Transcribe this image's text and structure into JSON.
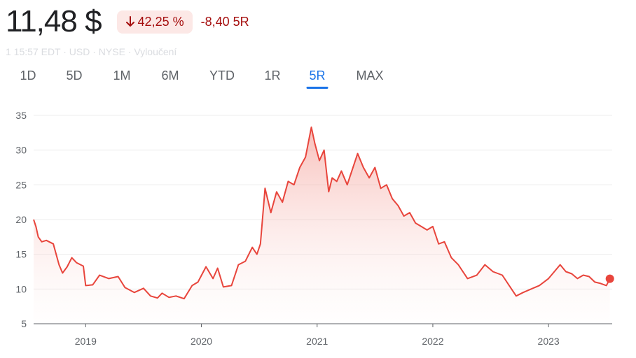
{
  "header": {
    "price": "11,48 $",
    "change_percent": "42,25 %",
    "change_direction": "down",
    "change_absolute": "-8,40 5R",
    "subline": "1  15:57 EDT · USD · NYSE · Vyloučení"
  },
  "range_tabs": [
    {
      "label": "1D",
      "active": false
    },
    {
      "label": "5D",
      "active": false
    },
    {
      "label": "1M",
      "active": false
    },
    {
      "label": "6M",
      "active": false
    },
    {
      "label": "YTD",
      "active": false
    },
    {
      "label": "1R",
      "active": false
    },
    {
      "label": "5R",
      "active": true
    },
    {
      "label": "MAX",
      "active": false
    }
  ],
  "colors": {
    "line": "#e8453c",
    "fill": "#f6c4c0",
    "negative_text": "#a50e0e",
    "negative_bg": "#fce8e6",
    "active_tab": "#1a73e8",
    "grid": "#ececec",
    "axis": "#5f6368"
  },
  "chart_data": {
    "type": "area",
    "title": "",
    "xlabel": "",
    "ylabel": "",
    "grid": true,
    "y_ticks": [
      5,
      10,
      15,
      20,
      25,
      30,
      35
    ],
    "y_tick_labels": [
      "5",
      "10",
      "15",
      "20",
      "25",
      "30",
      "35"
    ],
    "ylim": [
      5,
      35
    ],
    "xlim": [
      2018.55,
      2023.55
    ],
    "x_ticks": [
      2019,
      2020,
      2021,
      2022,
      2023
    ],
    "x_tick_labels": [
      "2019",
      "2020",
      "2021",
      "2022",
      "2023"
    ],
    "series": [
      {
        "x": [
          2018.55,
          2018.57,
          2018.59,
          2018.62,
          2018.66,
          2018.72,
          2018.77,
          2018.8,
          2018.84,
          2018.88,
          2018.92,
          2018.98,
          2019.0,
          2019.06,
          2019.12,
          2019.2,
          2019.28,
          2019.34,
          2019.42,
          2019.5,
          2019.56,
          2019.62,
          2019.66,
          2019.72,
          2019.78,
          2019.85,
          2019.92,
          2019.97,
          2020.04,
          2020.1,
          2020.14,
          2020.19,
          2020.26,
          2020.32,
          2020.38,
          2020.44,
          2020.48,
          2020.51,
          2020.55,
          2020.6,
          2020.65,
          2020.7,
          2020.75,
          2020.8,
          2020.85,
          2020.9,
          2020.95,
          2020.98,
          2021.02,
          2021.06,
          2021.1,
          2021.13,
          2021.17,
          2021.21,
          2021.26,
          2021.3,
          2021.35,
          2021.4,
          2021.45,
          2021.5,
          2021.55,
          2021.6,
          2021.65,
          2021.7,
          2021.75,
          2021.8,
          2021.85,
          2021.9,
          2021.95,
          2022.0,
          2022.05,
          2022.1,
          2022.16,
          2022.22,
          2022.3,
          2022.38,
          2022.45,
          2022.52,
          2022.6,
          2022.66,
          2022.72,
          2022.78,
          2022.85,
          2022.92,
          2023.0,
          2023.05,
          2023.1,
          2023.15,
          2023.2,
          2023.25,
          2023.3,
          2023.35,
          2023.4,
          2023.45,
          2023.5,
          2023.53
        ],
        "values": [
          20.0,
          19.0,
          17.5,
          16.8,
          17.0,
          16.5,
          13.5,
          12.3,
          13.2,
          14.5,
          13.8,
          13.3,
          10.5,
          10.6,
          12.0,
          11.5,
          11.8,
          10.2,
          9.5,
          10.1,
          9.0,
          8.7,
          9.4,
          8.8,
          9.0,
          8.6,
          10.5,
          11.0,
          13.2,
          11.5,
          13.0,
          10.3,
          10.5,
          13.5,
          14.0,
          16.0,
          15.0,
          16.5,
          24.5,
          21.0,
          24.0,
          22.5,
          25.5,
          25.0,
          27.5,
          29.0,
          33.3,
          31.0,
          28.5,
          30.0,
          24.0,
          26.0,
          25.5,
          27.0,
          25.0,
          27.0,
          29.5,
          27.5,
          26.0,
          27.5,
          24.5,
          25.0,
          23.0,
          22.0,
          20.5,
          21.0,
          19.5,
          19.0,
          18.5,
          19.0,
          16.5,
          16.8,
          14.5,
          13.5,
          11.5,
          12.0,
          13.5,
          12.5,
          12.0,
          10.5,
          9.0,
          9.5,
          10.0,
          10.5,
          11.5,
          12.5,
          13.5,
          12.5,
          12.2,
          11.5,
          12.0,
          11.8,
          11.0,
          10.8,
          10.5,
          11.48
        ]
      }
    ],
    "last_point": {
      "x": 2023.53,
      "y": 11.48
    }
  }
}
